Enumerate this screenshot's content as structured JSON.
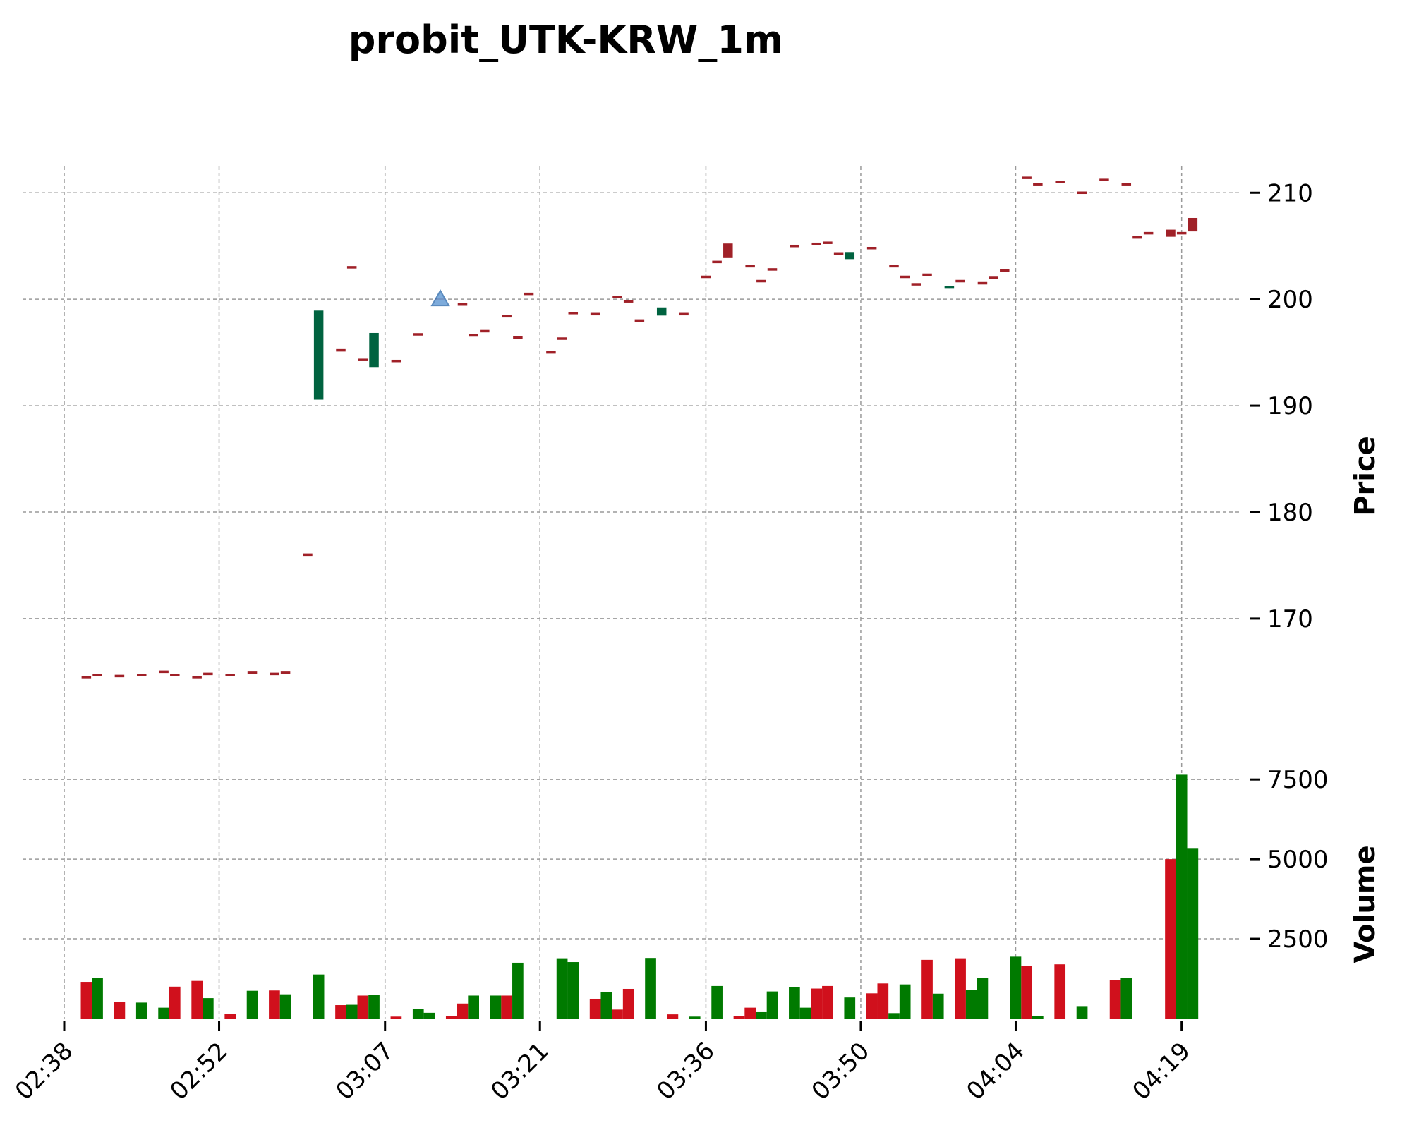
{
  "chart_data": {
    "type": "candlestick",
    "title": "probit_UTK-KRW_1m",
    "ylabel": "Price",
    "volume_label": "Volume",
    "price_ylim": [
      158,
      213
    ],
    "price_ticks": [
      170,
      180,
      190,
      200,
      210
    ],
    "volume_ylim": [
      0,
      8500
    ],
    "volume_ticks": [
      2500,
      5000,
      7500
    ],
    "x_ticks": [
      {
        "label": "02:38",
        "t": 0
      },
      {
        "label": "02:52",
        "t": 14
      },
      {
        "label": "03:07",
        "t": 29
      },
      {
        "label": "03:21",
        "t": 43
      },
      {
        "label": "03:36",
        "t": 58
      },
      {
        "label": "03:50",
        "t": 72
      },
      {
        "label": "04:04",
        "t": 86
      },
      {
        "label": "04:19",
        "t": 101
      }
    ],
    "grid": true,
    "colors": {
      "up": "#006340",
      "down": "#a02128",
      "vol_up": "#007a00",
      "vol_down": "#d0101c",
      "marker": "#6fa3d8"
    },
    "candles": [
      {
        "t": 2,
        "o": 164.5,
        "h": 164.5,
        "c": 164.5,
        "l": 164.5,
        "dir": "down"
      },
      {
        "t": 3,
        "o": 164.7,
        "h": 164.7,
        "c": 164.7,
        "l": 164.7,
        "dir": "down"
      },
      {
        "t": 5,
        "o": 164.6,
        "h": 164.6,
        "c": 164.6,
        "l": 164.6,
        "dir": "down"
      },
      {
        "t": 7,
        "o": 164.7,
        "h": 164.7,
        "c": 164.7,
        "l": 164.7,
        "dir": "down"
      },
      {
        "t": 9,
        "o": 165.0,
        "h": 165.0,
        "c": 165.0,
        "l": 165.0,
        "dir": "down"
      },
      {
        "t": 10,
        "o": 164.7,
        "h": 164.7,
        "c": 164.7,
        "l": 164.7,
        "dir": "down"
      },
      {
        "t": 12,
        "o": 164.5,
        "h": 164.5,
        "c": 164.5,
        "l": 164.5,
        "dir": "down"
      },
      {
        "t": 13,
        "o": 164.8,
        "h": 164.8,
        "c": 164.8,
        "l": 164.8,
        "dir": "down"
      },
      {
        "t": 15,
        "o": 164.7,
        "h": 164.7,
        "c": 164.7,
        "l": 164.7,
        "dir": "down"
      },
      {
        "t": 17,
        "o": 164.9,
        "h": 164.9,
        "c": 164.9,
        "l": 164.9,
        "dir": "down"
      },
      {
        "t": 19,
        "o": 164.8,
        "h": 164.8,
        "c": 164.8,
        "l": 164.8,
        "dir": "down"
      },
      {
        "t": 20,
        "o": 164.9,
        "h": 164.9,
        "c": 164.9,
        "l": 164.9,
        "dir": "down"
      },
      {
        "t": 22,
        "o": 176.0,
        "h": 176.0,
        "c": 176.0,
        "l": 176.0,
        "dir": "down"
      },
      {
        "t": 23,
        "o": 190.6,
        "h": 198.9,
        "c": 198.9,
        "l": 190.6,
        "dir": "up"
      },
      {
        "t": 25,
        "o": 195.2,
        "h": 195.2,
        "c": 195.2,
        "l": 195.2,
        "dir": "down"
      },
      {
        "t": 26,
        "o": 203.0,
        "h": 203.0,
        "c": 203.0,
        "l": 203.0,
        "dir": "down"
      },
      {
        "t": 27,
        "o": 194.3,
        "h": 194.3,
        "c": 194.3,
        "l": 194.3,
        "dir": "down"
      },
      {
        "t": 28,
        "o": 193.6,
        "h": 196.8,
        "c": 196.8,
        "l": 193.6,
        "dir": "up"
      },
      {
        "t": 30,
        "o": 194.2,
        "h": 194.2,
        "c": 194.2,
        "l": 194.2,
        "dir": "down"
      },
      {
        "t": 32,
        "o": 196.7,
        "h": 196.7,
        "c": 196.7,
        "l": 196.7,
        "dir": "down"
      },
      {
        "t": 34,
        "o": 200.0,
        "h": 200.0,
        "c": 200.0,
        "l": 200.0,
        "dir": "down"
      },
      {
        "t": 36,
        "o": 199.5,
        "h": 199.5,
        "c": 199.5,
        "l": 199.5,
        "dir": "down"
      },
      {
        "t": 37,
        "o": 196.6,
        "h": 196.6,
        "c": 196.6,
        "l": 196.6,
        "dir": "down"
      },
      {
        "t": 38,
        "o": 197.0,
        "h": 197.0,
        "c": 197.0,
        "l": 197.0,
        "dir": "down"
      },
      {
        "t": 40,
        "o": 198.4,
        "h": 198.4,
        "c": 198.4,
        "l": 198.4,
        "dir": "down"
      },
      {
        "t": 41,
        "o": 196.4,
        "h": 196.4,
        "c": 196.4,
        "l": 196.4,
        "dir": "down"
      },
      {
        "t": 42,
        "o": 200.5,
        "h": 200.5,
        "c": 200.5,
        "l": 200.5,
        "dir": "down"
      },
      {
        "t": 44,
        "o": 195.0,
        "h": 195.0,
        "c": 195.0,
        "l": 195.0,
        "dir": "down"
      },
      {
        "t": 45,
        "o": 196.3,
        "h": 196.3,
        "c": 196.3,
        "l": 196.3,
        "dir": "down"
      },
      {
        "t": 46,
        "o": 198.7,
        "h": 198.7,
        "c": 198.7,
        "l": 198.7,
        "dir": "down"
      },
      {
        "t": 48,
        "o": 198.6,
        "h": 198.6,
        "c": 198.6,
        "l": 198.6,
        "dir": "down"
      },
      {
        "t": 50,
        "o": 200.2,
        "h": 200.2,
        "c": 200.2,
        "l": 200.2,
        "dir": "down"
      },
      {
        "t": 51,
        "o": 199.8,
        "h": 199.8,
        "c": 199.8,
        "l": 199.8,
        "dir": "down"
      },
      {
        "t": 52,
        "o": 198.0,
        "h": 198.0,
        "c": 198.0,
        "l": 198.0,
        "dir": "down"
      },
      {
        "t": 54,
        "o": 198.5,
        "h": 199.2,
        "c": 199.2,
        "l": 198.5,
        "dir": "up"
      },
      {
        "t": 56,
        "o": 198.6,
        "h": 198.6,
        "c": 198.6,
        "l": 198.6,
        "dir": "down"
      },
      {
        "t": 58,
        "o": 202.1,
        "h": 202.1,
        "c": 202.1,
        "l": 202.1,
        "dir": "down"
      },
      {
        "t": 59,
        "o": 203.5,
        "h": 203.5,
        "c": 203.5,
        "l": 203.5,
        "dir": "down"
      },
      {
        "t": 60,
        "o": 205.2,
        "h": 205.2,
        "c": 203.9,
        "l": 203.9,
        "dir": "down"
      },
      {
        "t": 62,
        "o": 203.1,
        "h": 203.1,
        "c": 203.1,
        "l": 203.1,
        "dir": "down"
      },
      {
        "t": 63,
        "o": 201.7,
        "h": 201.7,
        "c": 201.7,
        "l": 201.7,
        "dir": "down"
      },
      {
        "t": 64,
        "o": 202.8,
        "h": 202.8,
        "c": 202.8,
        "l": 202.8,
        "dir": "down"
      },
      {
        "t": 66,
        "o": 205.0,
        "h": 205.0,
        "c": 205.0,
        "l": 205.0,
        "dir": "down"
      },
      {
        "t": 68,
        "o": 205.2,
        "h": 205.2,
        "c": 205.2,
        "l": 205.2,
        "dir": "down"
      },
      {
        "t": 69,
        "o": 205.3,
        "h": 205.3,
        "c": 205.3,
        "l": 205.3,
        "dir": "down"
      },
      {
        "t": 70,
        "o": 204.3,
        "h": 204.3,
        "c": 204.3,
        "l": 204.3,
        "dir": "down"
      },
      {
        "t": 71,
        "o": 203.8,
        "h": 204.4,
        "c": 204.4,
        "l": 203.8,
        "dir": "up"
      },
      {
        "t": 73,
        "o": 204.8,
        "h": 204.8,
        "c": 204.8,
        "l": 204.8,
        "dir": "down"
      },
      {
        "t": 75,
        "o": 203.1,
        "h": 203.1,
        "c": 203.1,
        "l": 203.1,
        "dir": "down"
      },
      {
        "t": 76,
        "o": 202.1,
        "h": 202.1,
        "c": 202.1,
        "l": 202.1,
        "dir": "down"
      },
      {
        "t": 77,
        "o": 201.4,
        "h": 201.4,
        "c": 201.4,
        "l": 201.4,
        "dir": "down"
      },
      {
        "t": 78,
        "o": 202.3,
        "h": 202.3,
        "c": 202.3,
        "l": 202.3,
        "dir": "down"
      },
      {
        "t": 80,
        "o": 201.0,
        "h": 201.1,
        "c": 201.1,
        "l": 201.0,
        "dir": "up"
      },
      {
        "t": 81,
        "o": 201.7,
        "h": 201.7,
        "c": 201.7,
        "l": 201.7,
        "dir": "down"
      },
      {
        "t": 83,
        "o": 201.5,
        "h": 201.5,
        "c": 201.5,
        "l": 201.5,
        "dir": "down"
      },
      {
        "t": 84,
        "o": 202.0,
        "h": 202.0,
        "c": 202.0,
        "l": 202.0,
        "dir": "down"
      },
      {
        "t": 85,
        "o": 202.7,
        "h": 202.7,
        "c": 202.7,
        "l": 202.7,
        "dir": "down"
      },
      {
        "t": 87,
        "o": 211.4,
        "h": 211.4,
        "c": 211.4,
        "l": 211.4,
        "dir": "down"
      },
      {
        "t": 88,
        "o": 210.8,
        "h": 210.8,
        "c": 210.8,
        "l": 210.8,
        "dir": "down"
      },
      {
        "t": 90,
        "o": 211.0,
        "h": 211.0,
        "c": 211.0,
        "l": 211.0,
        "dir": "down"
      },
      {
        "t": 92,
        "o": 210.0,
        "h": 210.0,
        "c": 210.0,
        "l": 210.0,
        "dir": "down"
      },
      {
        "t": 94,
        "o": 211.2,
        "h": 211.2,
        "c": 211.2,
        "l": 211.2,
        "dir": "down"
      },
      {
        "t": 96,
        "o": 210.8,
        "h": 210.8,
        "c": 210.8,
        "l": 210.8,
        "dir": "down"
      },
      {
        "t": 97,
        "o": 205.8,
        "h": 205.8,
        "c": 205.8,
        "l": 205.8,
        "dir": "down"
      },
      {
        "t": 98,
        "o": 206.2,
        "h": 206.2,
        "c": 206.2,
        "l": 206.2,
        "dir": "down"
      },
      {
        "t": 100,
        "o": 206.5,
        "h": 206.5,
        "c": 205.9,
        "l": 205.9,
        "dir": "down"
      },
      {
        "t": 101,
        "o": 206.2,
        "h": 206.2,
        "c": 206.2,
        "l": 206.2,
        "dir": "down"
      },
      {
        "t": 102,
        "o": 207.6,
        "h": 207.6,
        "c": 206.4,
        "l": 206.4,
        "dir": "down"
      }
    ],
    "markers": [
      {
        "t": 34,
        "price": 200.0,
        "shape": "triangle-up"
      }
    ],
    "volume": [
      {
        "t": 2,
        "v": 1150,
        "dir": "down"
      },
      {
        "t": 3,
        "v": 1270,
        "dir": "up"
      },
      {
        "t": 5,
        "v": 520,
        "dir": "down"
      },
      {
        "t": 7,
        "v": 500,
        "dir": "up"
      },
      {
        "t": 9,
        "v": 340,
        "dir": "up"
      },
      {
        "t": 10,
        "v": 1000,
        "dir": "down"
      },
      {
        "t": 12,
        "v": 1180,
        "dir": "down"
      },
      {
        "t": 13,
        "v": 640,
        "dir": "up"
      },
      {
        "t": 15,
        "v": 140,
        "dir": "down"
      },
      {
        "t": 17,
        "v": 870,
        "dir": "up"
      },
      {
        "t": 19,
        "v": 880,
        "dir": "down"
      },
      {
        "t": 20,
        "v": 760,
        "dir": "up"
      },
      {
        "t": 23,
        "v": 1380,
        "dir": "up"
      },
      {
        "t": 25,
        "v": 420,
        "dir": "down"
      },
      {
        "t": 26,
        "v": 430,
        "dir": "up"
      },
      {
        "t": 27,
        "v": 720,
        "dir": "down"
      },
      {
        "t": 28,
        "v": 750,
        "dir": "up"
      },
      {
        "t": 30,
        "v": 60,
        "dir": "down"
      },
      {
        "t": 32,
        "v": 300,
        "dir": "up"
      },
      {
        "t": 33,
        "v": 180,
        "dir": "up"
      },
      {
        "t": 35,
        "v": 70,
        "dir": "down"
      },
      {
        "t": 36,
        "v": 470,
        "dir": "down"
      },
      {
        "t": 37,
        "v": 720,
        "dir": "up"
      },
      {
        "t": 39,
        "v": 720,
        "dir": "up"
      },
      {
        "t": 40,
        "v": 720,
        "dir": "down"
      },
      {
        "t": 41,
        "v": 1750,
        "dir": "up"
      },
      {
        "t": 45,
        "v": 1890,
        "dir": "up"
      },
      {
        "t": 46,
        "v": 1770,
        "dir": "up"
      },
      {
        "t": 48,
        "v": 620,
        "dir": "down"
      },
      {
        "t": 49,
        "v": 820,
        "dir": "up"
      },
      {
        "t": 50,
        "v": 280,
        "dir": "down"
      },
      {
        "t": 51,
        "v": 930,
        "dir": "down"
      },
      {
        "t": 53,
        "v": 1900,
        "dir": "up"
      },
      {
        "t": 55,
        "v": 130,
        "dir": "down"
      },
      {
        "t": 57,
        "v": 60,
        "dir": "up"
      },
      {
        "t": 59,
        "v": 1020,
        "dir": "up"
      },
      {
        "t": 61,
        "v": 80,
        "dir": "down"
      },
      {
        "t": 62,
        "v": 340,
        "dir": "down"
      },
      {
        "t": 63,
        "v": 200,
        "dir": "up"
      },
      {
        "t": 64,
        "v": 850,
        "dir": "up"
      },
      {
        "t": 66,
        "v": 990,
        "dir": "up"
      },
      {
        "t": 67,
        "v": 340,
        "dir": "up"
      },
      {
        "t": 68,
        "v": 940,
        "dir": "down"
      },
      {
        "t": 69,
        "v": 1020,
        "dir": "down"
      },
      {
        "t": 71,
        "v": 660,
        "dir": "up"
      },
      {
        "t": 73,
        "v": 790,
        "dir": "down"
      },
      {
        "t": 74,
        "v": 1100,
        "dir": "down"
      },
      {
        "t": 75,
        "v": 170,
        "dir": "up"
      },
      {
        "t": 76,
        "v": 1070,
        "dir": "up"
      },
      {
        "t": 78,
        "v": 1840,
        "dir": "down"
      },
      {
        "t": 79,
        "v": 780,
        "dir": "up"
      },
      {
        "t": 81,
        "v": 1890,
        "dir": "down"
      },
      {
        "t": 82,
        "v": 900,
        "dir": "up"
      },
      {
        "t": 83,
        "v": 1280,
        "dir": "up"
      },
      {
        "t": 86,
        "v": 1940,
        "dir": "up"
      },
      {
        "t": 87,
        "v": 1650,
        "dir": "down"
      },
      {
        "t": 88,
        "v": 70,
        "dir": "up"
      },
      {
        "t": 90,
        "v": 1700,
        "dir": "down"
      },
      {
        "t": 92,
        "v": 390,
        "dir": "up"
      },
      {
        "t": 95,
        "v": 1210,
        "dir": "down"
      },
      {
        "t": 96,
        "v": 1280,
        "dir": "up"
      },
      {
        "t": 100,
        "v": 5000,
        "dir": "down"
      },
      {
        "t": 101,
        "v": 7650,
        "dir": "up"
      },
      {
        "t": 102,
        "v": 5350,
        "dir": "up"
      }
    ]
  }
}
